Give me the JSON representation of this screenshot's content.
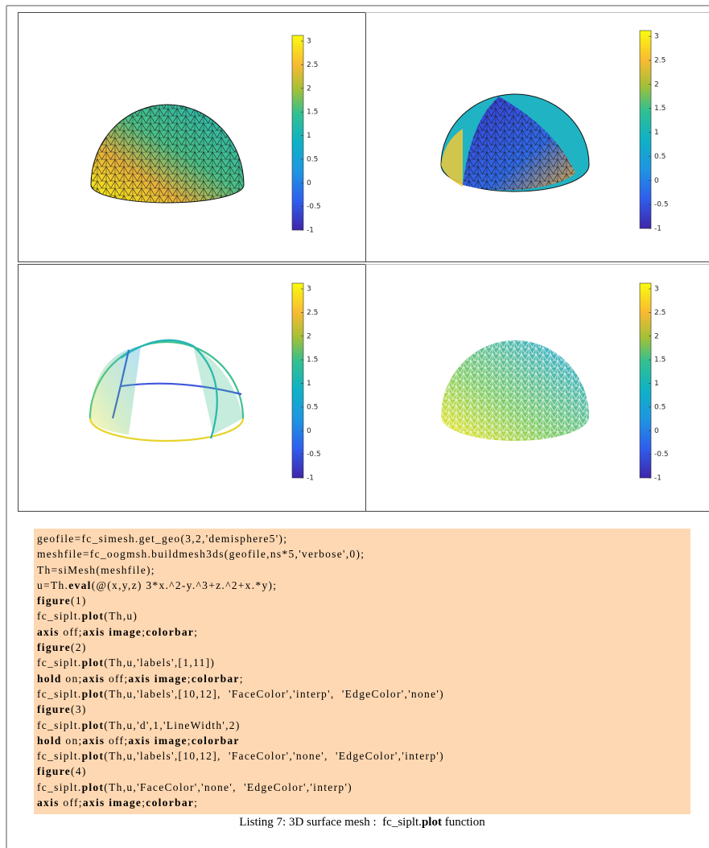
{
  "figures": [
    {
      "colorbar": {
        "clim": [
          -1,
          3.12
        ],
        "ticks": [
          3,
          2.5,
          2,
          1.5,
          1,
          0.5,
          0,
          -0.5,
          -1
        ]
      }
    },
    {
      "colorbar": {
        "clim": [
          -1,
          3.12
        ],
        "ticks": [
          3,
          2.5,
          2,
          1.5,
          1,
          0.5,
          0,
          -0.5,
          -1
        ]
      }
    },
    {
      "colorbar": {
        "clim": [
          -1,
          3.12
        ],
        "ticks": [
          3,
          2.5,
          2,
          1.5,
          1,
          0.5,
          0,
          -0.5,
          -1
        ]
      }
    },
    {
      "colorbar": {
        "clim": [
          -1,
          3.12
        ],
        "ticks": [
          3,
          2.5,
          2,
          1.5,
          1,
          0.5,
          0,
          -0.5,
          -1
        ]
      }
    }
  ],
  "code": {
    "lines": [
      [
        "geofile=fc_simesh.get_geo(3,2,'demisphere5');"
      ],
      [
        "meshfile=fc_oogmsh.buildmesh3ds(geofile,ns*5,'verbose',0);"
      ],
      [
        "Th=siMesh(meshfile);"
      ],
      [
        "u=Th.",
        {
          "text": "eval",
          "bold": true
        },
        "(@(x,y,z) 3*x.^2-y.^3+z.^2+x.*y);"
      ],
      [
        {
          "text": "figure",
          "bold": true
        },
        "(1)"
      ],
      [
        "fc_siplt.",
        {
          "text": "plot",
          "bold": true
        },
        "(Th,u)"
      ],
      [
        {
          "text": "axis",
          "bold": true
        },
        " off;",
        {
          "text": "axis image",
          "bold": true
        },
        ";",
        {
          "text": "colorbar",
          "bold": true
        },
        ";"
      ],
      [
        {
          "text": "figure",
          "bold": true
        },
        "(2)"
      ],
      [
        "fc_siplt.",
        {
          "text": "plot",
          "bold": true
        },
        "(Th,u,'labels',[1,11])"
      ],
      [
        {
          "text": "hold",
          "bold": true
        },
        " on;",
        {
          "text": "axis",
          "bold": true
        },
        " off;",
        {
          "text": "axis image",
          "bold": true
        },
        ";",
        {
          "text": "colorbar",
          "bold": true
        },
        ";"
      ],
      [
        "fc_siplt.",
        {
          "text": "plot",
          "bold": true
        },
        "(Th,u,'labels',[10,12],  'FaceColor','interp',  'EdgeColor','none')"
      ],
      [
        {
          "text": "figure",
          "bold": true
        },
        "(3)"
      ],
      [
        "fc_siplt.",
        {
          "text": "plot",
          "bold": true
        },
        "(Th,u,'d',1,'LineWidth',2)"
      ],
      [
        {
          "text": "hold",
          "bold": true
        },
        " on;",
        {
          "text": "axis",
          "bold": true
        },
        " off;",
        {
          "text": "axis image",
          "bold": true
        },
        ";",
        {
          "text": "colorbar",
          "bold": true
        }
      ],
      [
        "fc_siplt.",
        {
          "text": "plot",
          "bold": true
        },
        "(Th,u,'labels',[10,12],  'FaceColor','none',  'EdgeColor','interp')"
      ],
      [
        {
          "text": "figure",
          "bold": true
        },
        "(4)"
      ],
      [
        "fc_siplt.",
        {
          "text": "plot",
          "bold": true
        },
        "(Th,u,'FaceColor','none',  'EdgeColor','interp')"
      ],
      [
        {
          "text": "axis",
          "bold": true
        },
        " off;",
        {
          "text": "axis image",
          "bold": true
        },
        ";",
        {
          "text": "colorbar",
          "bold": true
        },
        ";"
      ]
    ]
  },
  "caption": [
    "Listing 7: 3D surface mesh :  fc_siplt.",
    {
      "text": "plot",
      "bold": true
    },
    " function"
  ]
}
